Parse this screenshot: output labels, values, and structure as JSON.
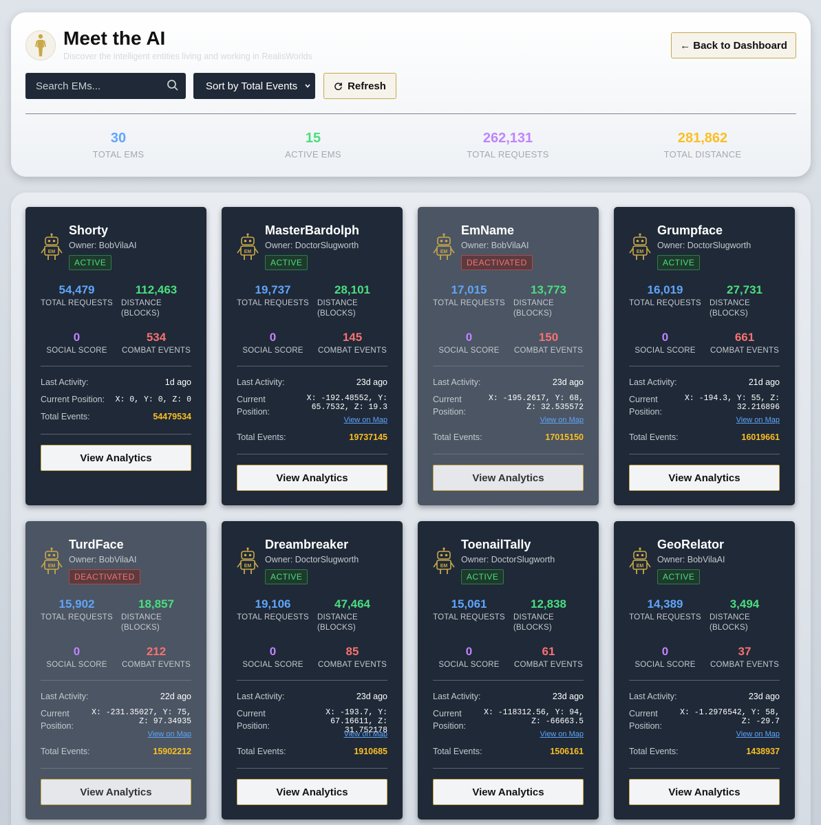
{
  "header": {
    "title": "Meet the AI",
    "subtitle": "Discover the intelligent entities living and working in RealisWorlds",
    "back_label": "← Back to Dashboard",
    "search_placeholder": "Search EMs...",
    "sort_label": "Sort by Total Events",
    "refresh_label": "Refresh"
  },
  "summary": [
    {
      "value": "30",
      "label": "TOTAL EMS",
      "color": "#60a5fa"
    },
    {
      "value": "15",
      "label": "ACTIVE EMS",
      "color": "#4ade80"
    },
    {
      "value": "262,131",
      "label": "TOTAL REQUESTS",
      "color": "#c084fc"
    },
    {
      "value": "281,862",
      "label": "TOTAL DISTANCE",
      "color": "#fbbf24"
    }
  ],
  "labels": {
    "total_requests": "TOTAL REQUESTS",
    "distance": "DISTANCE (BLOCKS)",
    "social_score": "SOCIAL SCORE",
    "combat_events": "COMBAT EVENTS",
    "last_activity": "Last Activity:",
    "current_position": "Current Position:",
    "total_events": "Total Events:",
    "view_on_map": "View on Map",
    "view_analytics": "View Analytics",
    "robot_text": "EM"
  },
  "cards": [
    {
      "name": "Shorty",
      "owner": "Owner: BobVilaAI",
      "status": "ACTIVE",
      "requests": "54,479",
      "distance": "112,463",
      "social": "0",
      "combat": "534",
      "last_activity": "1d ago",
      "position": "X: 0, Y: 0, Z: 0",
      "total_events": "54479534"
    },
    {
      "name": "MasterBardolph",
      "owner": "Owner: DoctorSlugworth",
      "status": "ACTIVE",
      "requests": "19,737",
      "distance": "28,101",
      "social": "0",
      "combat": "145",
      "last_activity": "23d ago",
      "position": "X: -192.48552, Y: 65.7532, Z: 19.3",
      "total_events": "19737145"
    },
    {
      "name": "EmName",
      "owner": "Owner: BobVilaAI",
      "status": "DEACTIVATED",
      "requests": "17,015",
      "distance": "13,773",
      "social": "0",
      "combat": "150",
      "last_activity": "23d ago",
      "position": "X: -195.2617, Y: 68, Z: 32.535572",
      "total_events": "17015150"
    },
    {
      "name": "Grumpface",
      "owner": "Owner: DoctorSlugworth",
      "status": "ACTIVE",
      "requests": "16,019",
      "distance": "27,731",
      "social": "0",
      "combat": "661",
      "last_activity": "21d ago",
      "position": "X: -194.3, Y: 55, Z: 32.216896",
      "total_events": "16019661"
    },
    {
      "name": "TurdFace",
      "owner": "Owner: BobVilaAI",
      "status": "DEACTIVATED",
      "requests": "15,902",
      "distance": "18,857",
      "social": "0",
      "combat": "212",
      "last_activity": "22d ago",
      "position": "X: -231.35027, Y: 75, Z: 97.34935",
      "total_events": "15902212"
    },
    {
      "name": "Dreambreaker",
      "owner": "Owner: DoctorSlugworth",
      "status": "ACTIVE",
      "requests": "19,106",
      "distance": "47,464",
      "social": "0",
      "combat": "85",
      "last_activity": "23d ago",
      "position": "X: -193.7, Y: 67.16611, Z: 31.752178",
      "total_events": "1910685"
    },
    {
      "name": "ToenailTally",
      "owner": "Owner: DoctorSlugworth",
      "status": "ACTIVE",
      "requests": "15,061",
      "distance": "12,838",
      "social": "0",
      "combat": "61",
      "last_activity": "23d ago",
      "position": "X: -118312.56, Y: 94, Z: -66663.5",
      "total_events": "1506161"
    },
    {
      "name": "GeoRelator",
      "owner": "Owner: BobVilaAI",
      "status": "ACTIVE",
      "requests": "14,389",
      "distance": "3,494",
      "social": "0",
      "combat": "37",
      "last_activity": "23d ago",
      "position": "X: -1.2976542, Y: 58, Z: -29.7",
      "total_events": "1438937"
    }
  ]
}
